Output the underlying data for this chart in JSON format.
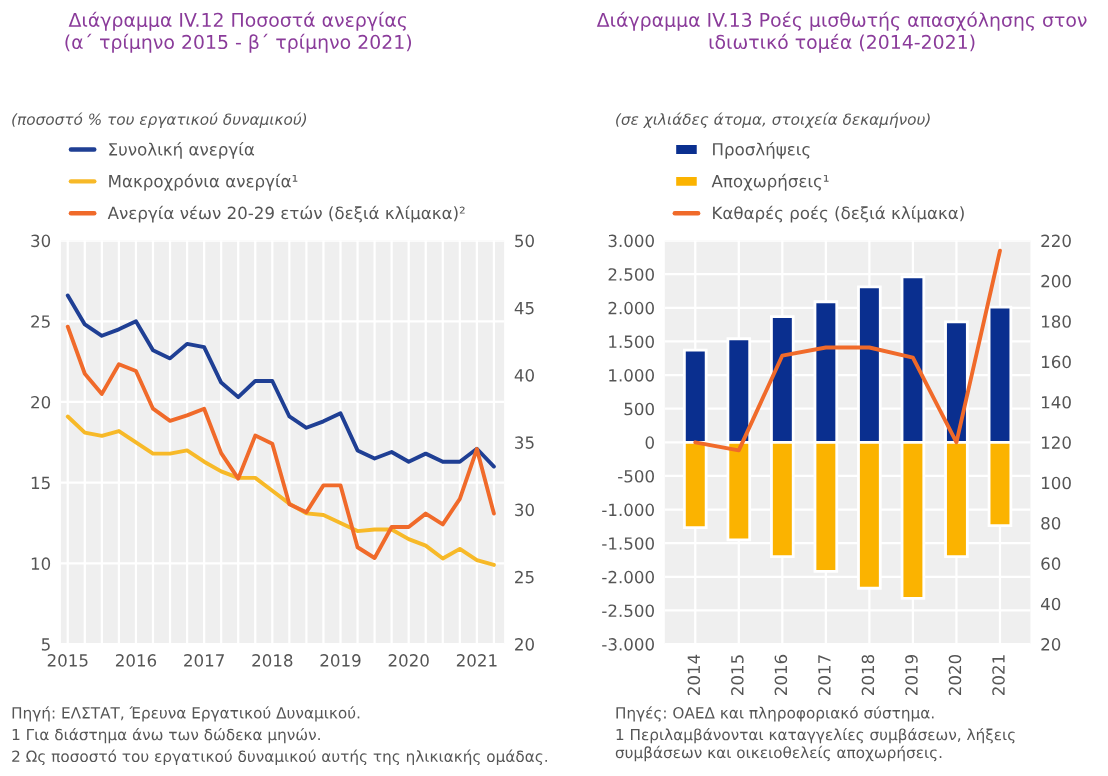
{
  "chart_data": [
    {
      "type": "line",
      "title": "Διάγραμμα IV.12 Ποσοστά ανεργίας\n(α΄ τρίμηνο 2015 - β΄ τρίμηνο 2021)",
      "subtitle": "(ποσοστό % του εργατικού δυναμικού)",
      "x": [
        2015,
        2015.25,
        2015.5,
        2015.75,
        2016,
        2016.25,
        2016.5,
        2016.75,
        2017,
        2017.25,
        2017.5,
        2017.75,
        2018,
        2018.25,
        2018.5,
        2018.75,
        2019,
        2019.25,
        2019.5,
        2019.75,
        2020,
        2020.25,
        2020.5,
        2020.75,
        2021,
        2021.25
      ],
      "series": [
        {
          "name": "Συνολική ανεργία",
          "color": "#1f3f94",
          "values": [
            26.6,
            24.8,
            24.1,
            24.5,
            25.0,
            23.2,
            22.7,
            23.6,
            23.4,
            21.2,
            20.3,
            21.3,
            21.3,
            19.1,
            18.4,
            18.8,
            19.3,
            17.0,
            16.5,
            16.9,
            16.3,
            16.8,
            16.3,
            16.3,
            17.1,
            16.0
          ]
        },
        {
          "name": "Μακροχρόνια ανεργία¹",
          "color": "#f7b928",
          "values": [
            19.1,
            18.1,
            17.9,
            18.2,
            17.5,
            16.8,
            16.8,
            17.0,
            16.3,
            15.7,
            15.3,
            15.3,
            14.5,
            13.7,
            13.1,
            13.0,
            12.5,
            12.0,
            12.1,
            12.1,
            11.5,
            11.1,
            10.3,
            10.9,
            10.2,
            9.9
          ]
        },
        {
          "name": "Ανεργία νέων 20-29 ετών (δεξιά κλίμακα)²",
          "color": "#f06a2a",
          "axis": "y2",
          "values": [
            43.6,
            40.1,
            38.6,
            40.8,
            40.3,
            37.5,
            36.6,
            37.0,
            37.5,
            34.2,
            32.3,
            35.5,
            34.9,
            30.4,
            29.8,
            31.8,
            31.8,
            27.2,
            26.4,
            28.7,
            28.7,
            29.7,
            28.9,
            30.8,
            34.5,
            29.7
          ]
        }
      ],
      "xlim": [
        2014.9,
        2021.4
      ],
      "xticks": [
        2015,
        2016,
        2017,
        2018,
        2019,
        2020,
        2021
      ],
      "ylim": [
        5,
        30
      ],
      "yticks": [
        5,
        10,
        15,
        20,
        25,
        30
      ],
      "y2lim": [
        20,
        50
      ],
      "y2ticks": [
        20,
        25,
        30,
        35,
        40,
        45,
        50
      ],
      "grid": true,
      "legend": "top left",
      "annotations": [
        "Πηγή: ΕΛΣΤΑΤ, Έρευνα Εργατικού Δυναμικού.",
        "1 Για διάστημα άνω των δώδεκα μηνών.",
        "2 Ως ποσοστό του εργατικού δυναμικού αυτής της ηλικιακής ομάδας."
      ]
    },
    {
      "type": "bar",
      "title": "Διάγραμμα IV.13 Ροές μισθωτής απασχόλησης στον\nιδιωτικό τομέα (2014-2021)",
      "subtitle": "(σε χιλιάδες άτομα, στοιχεία δεκαμήνου)",
      "categories": [
        "2014",
        "2015",
        "2016",
        "2017",
        "2018",
        "2019",
        "2020",
        "2021"
      ],
      "stacked": true,
      "series": [
        {
          "name": "Προσλήψεις",
          "color": "#0a2f8f",
          "values": [
            1370,
            1540,
            1870,
            2090,
            2310,
            2460,
            1790,
            2010
          ]
        },
        {
          "name": "Αποχωρήσεις¹",
          "color": "#fbb300",
          "values": [
            -1270,
            -1450,
            -1700,
            -1920,
            -2170,
            -2320,
            -1700,
            -1240
          ]
        },
        {
          "name": "Καθαρές ροές (δεξιά κλίμακα)",
          "type": "line",
          "color": "#f06a2a",
          "axis": "y2",
          "values": [
            120,
            116,
            163,
            167,
            167,
            162,
            120,
            215
          ]
        }
      ],
      "ylim": [
        -3000,
        3000
      ],
      "yticks": [
        {
          "value": -3000,
          "label": "-3.000"
        },
        {
          "value": -2500,
          "label": "-2.500"
        },
        {
          "value": -2000,
          "label": "-2.000"
        },
        {
          "value": -1500,
          "label": "-1.500"
        },
        {
          "value": -1000,
          "label": "-1.000"
        },
        -500,
        0,
        500,
        {
          "value": 1000,
          "label": "1.000"
        },
        {
          "value": 1500,
          "label": "1.500"
        },
        {
          "value": 2000,
          "label": "2.000"
        },
        {
          "value": 2500,
          "label": "2.500"
        },
        {
          "value": 3000,
          "label": "3.000"
        }
      ],
      "y2lim": [
        20,
        220
      ],
      "y2ticks": [
        20,
        40,
        60,
        80,
        100,
        120,
        140,
        160,
        180,
        200,
        220
      ],
      "grid": true,
      "legend": "top left",
      "annotations": [
        "Πηγές: ΟΑΕΔ και πληροφοριακό σύστημα.",
        "1 Περιλαμβάνονται καταγγελίες συμβάσεων, λήξεις συμβάσεων και οικειοθελείς αποχωρήσεις."
      ]
    }
  ]
}
